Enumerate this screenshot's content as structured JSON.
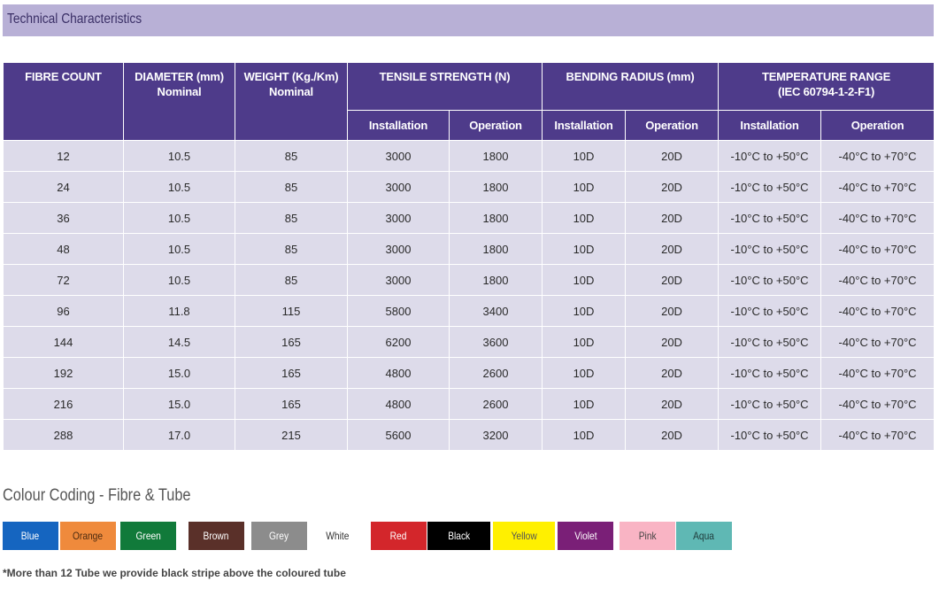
{
  "section": {
    "title": "Technical Characteristics"
  },
  "table": {
    "headers": {
      "fibre_count": "FIBRE COUNT",
      "diameter": "DIAMETER (mm)",
      "diameter_sub": "Nominal",
      "weight": "WEIGHT (Kg./Km)",
      "weight_sub": "Nominal",
      "tensile": "TENSILE STRENGTH (N)",
      "bending": "BENDING RADIUS (mm)",
      "temperature": "TEMPERATURE RANGE",
      "temperature_sub": "(IEC 60794-1-2-F1)",
      "installation": "Installation",
      "operation": "Operation"
    },
    "rows": [
      [
        "12",
        "10.5",
        "85",
        "3000",
        "1800",
        "10D",
        "20D",
        "-10°C to +50°C",
        "-40°C to +70°C"
      ],
      [
        "24",
        "10.5",
        "85",
        "3000",
        "1800",
        "10D",
        "20D",
        "-10°C to +50°C",
        "-40°C to +70°C"
      ],
      [
        "36",
        "10.5",
        "85",
        "3000",
        "1800",
        "10D",
        "20D",
        "-10°C to +50°C",
        "-40°C to +70°C"
      ],
      [
        "48",
        "10.5",
        "85",
        "3000",
        "1800",
        "10D",
        "20D",
        "-10°C to +50°C",
        "-40°C to +70°C"
      ],
      [
        "72",
        "10.5",
        "85",
        "3000",
        "1800",
        "10D",
        "20D",
        "-10°C to +50°C",
        "-40°C to +70°C"
      ],
      [
        "96",
        "11.8",
        "115",
        "5800",
        "3400",
        "10D",
        "20D",
        "-10°C to +50°C",
        "-40°C to +70°C"
      ],
      [
        "144",
        "14.5",
        "165",
        "6200",
        "3600",
        "10D",
        "20D",
        "-10°C to +50°C",
        "-40°C to +70°C"
      ],
      [
        "192",
        "15.0",
        "165",
        "4800",
        "2600",
        "10D",
        "20D",
        "-10°C to +50°C",
        "-40°C to +70°C"
      ],
      [
        "216",
        "15.0",
        "165",
        "4800",
        "2600",
        "10D",
        "20D",
        "-10°C to +50°C",
        "-40°C to +70°C"
      ],
      [
        "288",
        "17.0",
        "215",
        "5600",
        "3200",
        "10D",
        "20D",
        "-10°C to +50°C",
        "-40°C to +70°C"
      ]
    ]
  },
  "colour_coding": {
    "title": "Colour Coding - Fibre & Tube",
    "swatches": [
      {
        "label": "Blue",
        "color": "#1565c0",
        "text_color": "#ffffff"
      },
      {
        "label": "Orange",
        "color": "#ef8a3c",
        "text_color": "#4a2a10"
      },
      {
        "label": "Green",
        "color": "#117a3a",
        "text_color": "#ffffff"
      },
      {
        "label": "Brown",
        "color": "#5a3029",
        "text_color": "#ffffff"
      },
      {
        "label": "Grey",
        "color": "#8c8c8c",
        "text_color": "#ffffff"
      },
      {
        "label": "White",
        "color": "#ffffff",
        "text_color": "#333333"
      },
      {
        "label": "Red",
        "color": "#d3262b",
        "text_color": "#ffffff"
      },
      {
        "label": "Black",
        "color": "#000000",
        "text_color": "#ffffff"
      },
      {
        "label": "Yellow",
        "color": "#fff000",
        "text_color": "#555555"
      },
      {
        "label": "Violet",
        "color": "#7a1f77",
        "text_color": "#ffffff"
      },
      {
        "label": "Pink",
        "color": "#f9b4c4",
        "text_color": "#444444"
      },
      {
        "label": "Aqua",
        "color": "#5fb8b4",
        "text_color": "#1f3a3a"
      }
    ]
  },
  "footnote": "*More than 12 Tube we provide black stripe above the coloured tube"
}
